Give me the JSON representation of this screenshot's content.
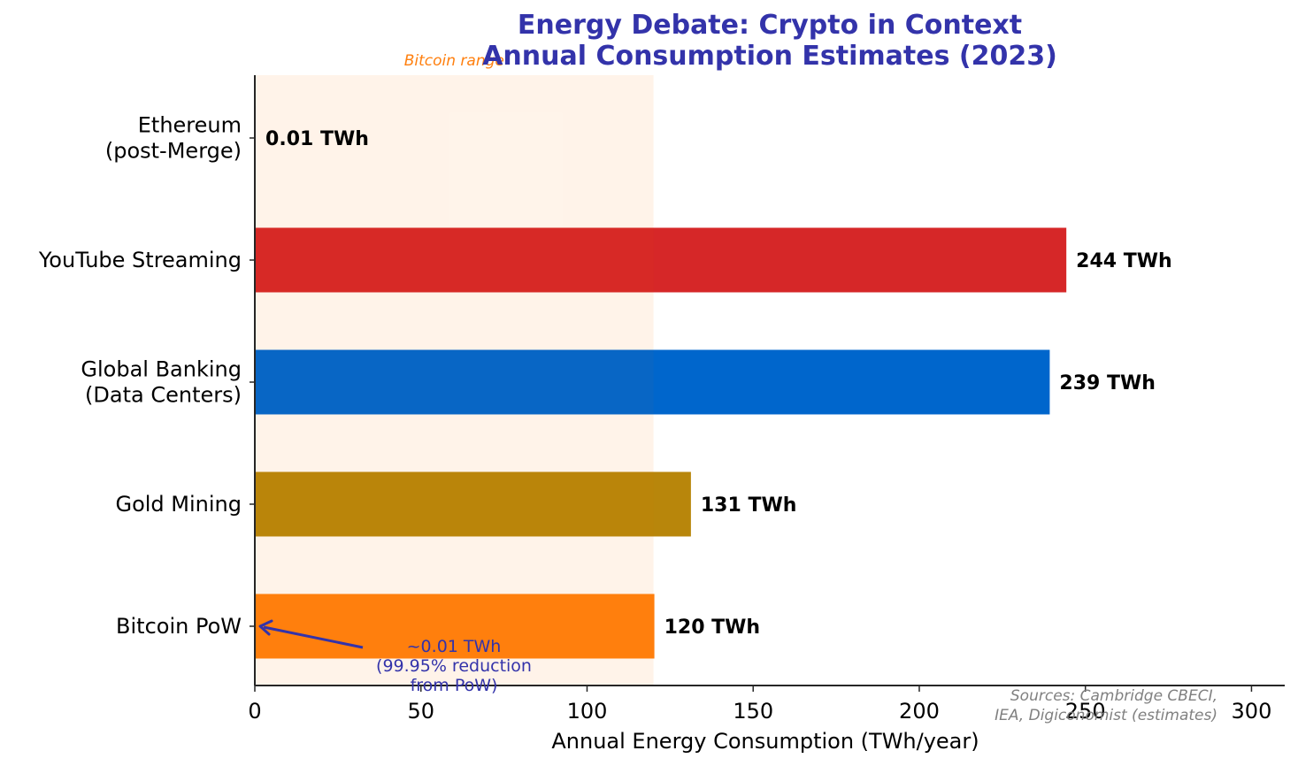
{
  "chart_data": {
    "type": "bar",
    "orientation": "horizontal",
    "title": "Energy Debate: Crypto in Context\nAnnual Consumption Estimates (2023)",
    "title_lines": [
      "Energy Debate: Crypto in Context",
      "Annual Consumption Estimates (2023)"
    ],
    "title_color": "#3333aa",
    "xlabel": "Annual Energy Consumption (TWh/year)",
    "ylabel": "",
    "xlim": [
      0,
      310
    ],
    "xticks": [
      0,
      50,
      100,
      150,
      200,
      250,
      300
    ],
    "grid": false,
    "categories": [
      {
        "label_lines": [
          "Bitcoin PoW"
        ]
      },
      {
        "label_lines": [
          "Gold Mining"
        ]
      },
      {
        "label_lines": [
          "Global Banking",
          "(Data Centers)"
        ]
      },
      {
        "label_lines": [
          "YouTube Streaming"
        ]
      },
      {
        "label_lines": [
          "Ethereum",
          "(post-Merge)"
        ]
      }
    ],
    "category_names": [
      "Bitcoin PoW",
      "Gold Mining",
      "Global Banking (Data Centers)",
      "YouTube Streaming",
      "Ethereum (post-Merge)"
    ],
    "values": [
      120,
      131,
      239,
      244,
      0.01
    ],
    "value_labels": [
      "120 TWh",
      "131 TWh",
      "239 TWh",
      "244 TWh",
      "0.01 TWh"
    ],
    "colors": [
      "#ff7f0e",
      "#b8860b",
      "#0066cc",
      "#d62728",
      "#627eea"
    ],
    "shaded_range": {
      "x_start": 0,
      "x_end": 120,
      "label": "Bitcoin range",
      "color": "#ff7f0e",
      "alpha": 0.06
    },
    "annotation": {
      "text_lines": [
        "~0.01 TWh",
        "(99.95% reduction",
        "from PoW)"
      ],
      "text_xy": [
        60,
        -0.3
      ],
      "arrow_to": [
        0.01,
        0
      ],
      "color": "#3333aa"
    },
    "source_note_lines": [
      "Sources: Cambridge CBECI,",
      "IEA, Digiconomist (estimates)"
    ]
  }
}
